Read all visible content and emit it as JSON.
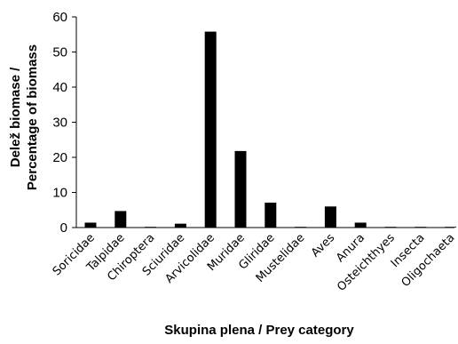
{
  "chart_data": {
    "type": "bar",
    "title": "",
    "xlabel": "Skupina plena / Prey category",
    "ylabel_lines": [
      "Delež biomase /",
      "Percentage of biomass"
    ],
    "ylim": [
      0,
      60
    ],
    "yticks": [
      0,
      10,
      20,
      30,
      40,
      50,
      60
    ],
    "grid": false,
    "legend": "none",
    "bar_color": "#000000",
    "categories": [
      "Soricidae",
      "Talpidae",
      "Chiroptera",
      "Sciuridae",
      "Arvicolidae",
      "Muridae",
      "Gliridae",
      "Mustelidae",
      "Aves",
      "Anura",
      "Osteichthyes",
      "Insecta",
      "Oligochaeta"
    ],
    "values": [
      1.4,
      4.7,
      0.2,
      1.1,
      55.8,
      21.8,
      7.1,
      0.2,
      6.0,
      1.4,
      0.1,
      0.1,
      0.1
    ]
  }
}
